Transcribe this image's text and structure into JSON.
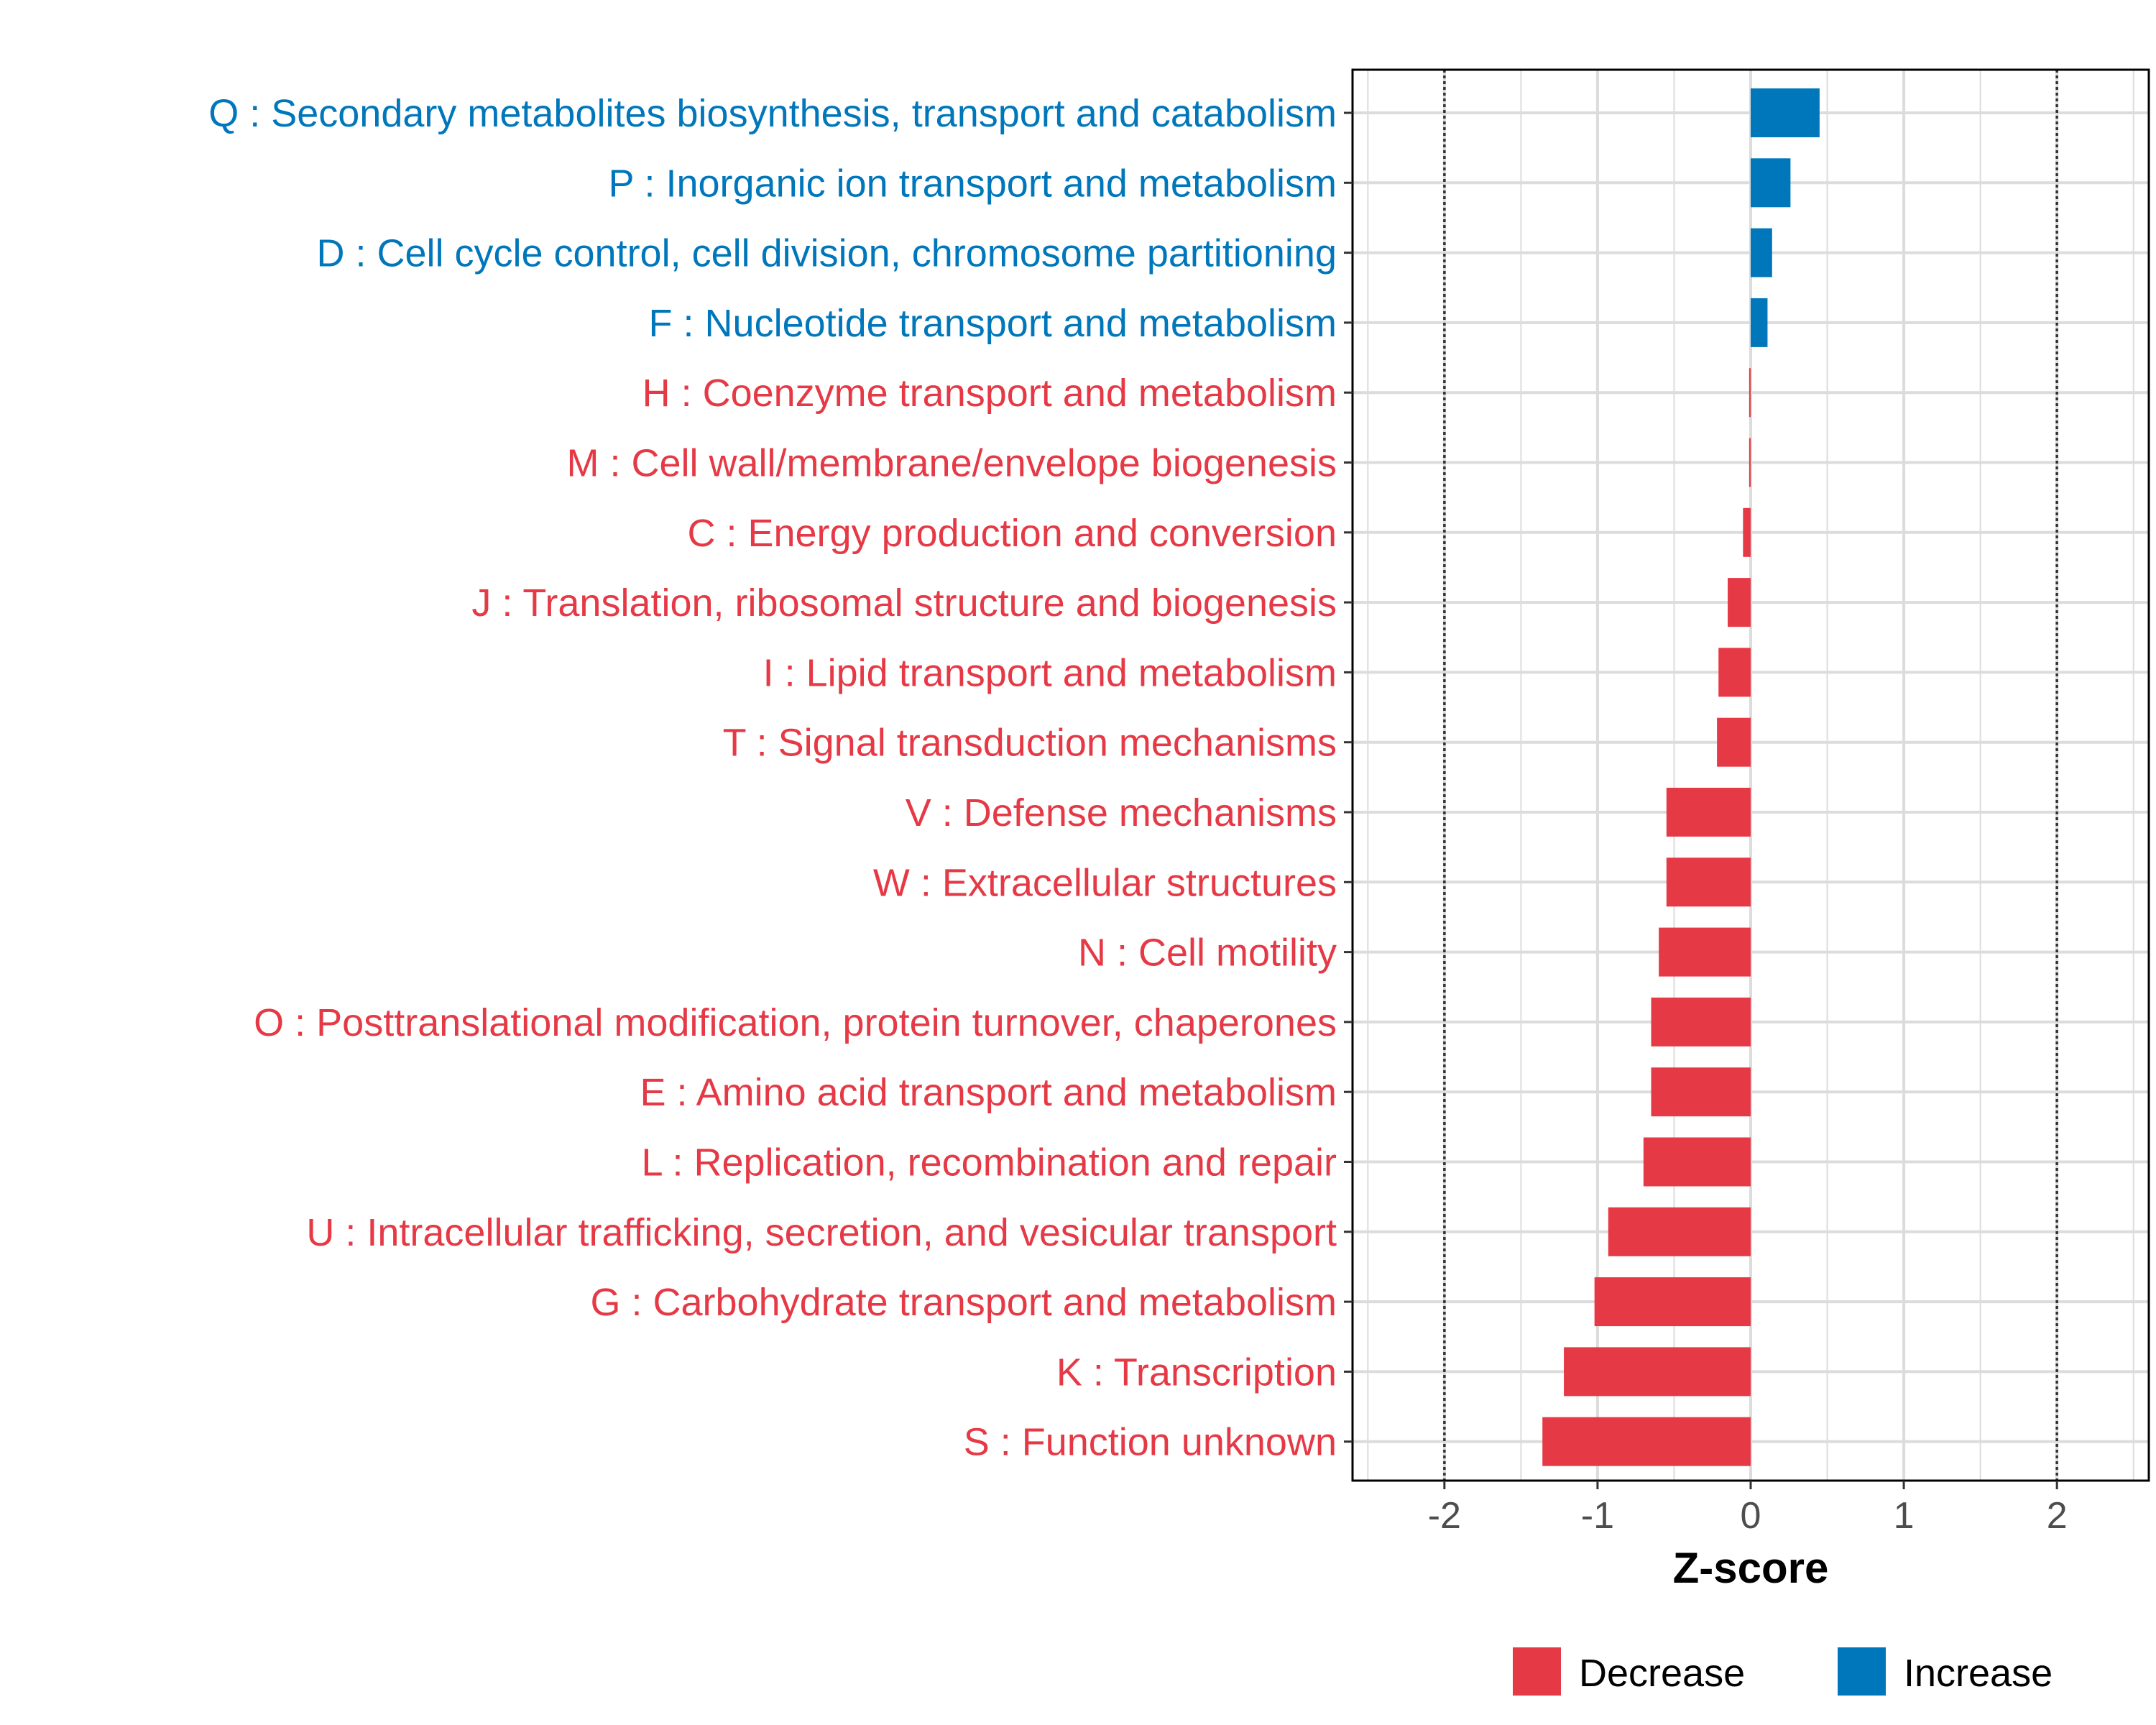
{
  "chart_data": {
    "type": "bar",
    "orientation": "horizontal",
    "title": "",
    "xlabel": "Z-score",
    "ylabel": "",
    "xlim": [
      -2.6,
      2.6
    ],
    "x_ticks": [
      -2,
      -1,
      0,
      1,
      2
    ],
    "x_tick_labels": [
      "-2",
      "-1",
      "0",
      "1",
      "2"
    ],
    "reference_lines": [
      -2,
      2
    ],
    "grid": true,
    "legend_position": "bottom-right",
    "colors": {
      "Decrease": "#e63946",
      "Increase": "#0077bb"
    },
    "legend": [
      {
        "label": "Decrease",
        "color": "#e63946"
      },
      {
        "label": "Increase",
        "color": "#0077bb"
      }
    ],
    "categories": [
      "Q : Secondary metabolites biosynthesis, transport and catabolism",
      "P : Inorganic ion transport and metabolism",
      "D : Cell cycle control, cell division, chromosome partitioning",
      "F : Nucleotide transport and metabolism",
      "H : Coenzyme transport and metabolism",
      "M : Cell wall/membrane/envelope biogenesis",
      "C : Energy production and conversion",
      "J : Translation, ribosomal structure and biogenesis",
      "I : Lipid transport and metabolism",
      "T : Signal transduction mechanisms",
      "V : Defense mechanisms",
      "W : Extracellular structures",
      "N : Cell motility",
      "O : Posttranslational modification, protein turnover, chaperones",
      "E : Amino acid transport and metabolism",
      "L : Replication, recombination and repair",
      "U : Intracellular trafficking, secretion, and vesicular transport",
      "G : Carbohydrate transport and metabolism",
      "K : Transcription",
      "S : Function unknown"
    ],
    "values": [
      0.45,
      0.26,
      0.14,
      0.11,
      -0.01,
      -0.01,
      -0.05,
      -0.15,
      -0.21,
      -0.22,
      -0.55,
      -0.55,
      -0.6,
      -0.65,
      -0.65,
      -0.7,
      -0.93,
      -1.02,
      -1.22,
      -1.36
    ],
    "groups": [
      "Increase",
      "Increase",
      "Increase",
      "Increase",
      "Decrease",
      "Decrease",
      "Decrease",
      "Decrease",
      "Decrease",
      "Decrease",
      "Decrease",
      "Decrease",
      "Decrease",
      "Decrease",
      "Decrease",
      "Decrease",
      "Decrease",
      "Decrease",
      "Decrease",
      "Decrease"
    ]
  }
}
